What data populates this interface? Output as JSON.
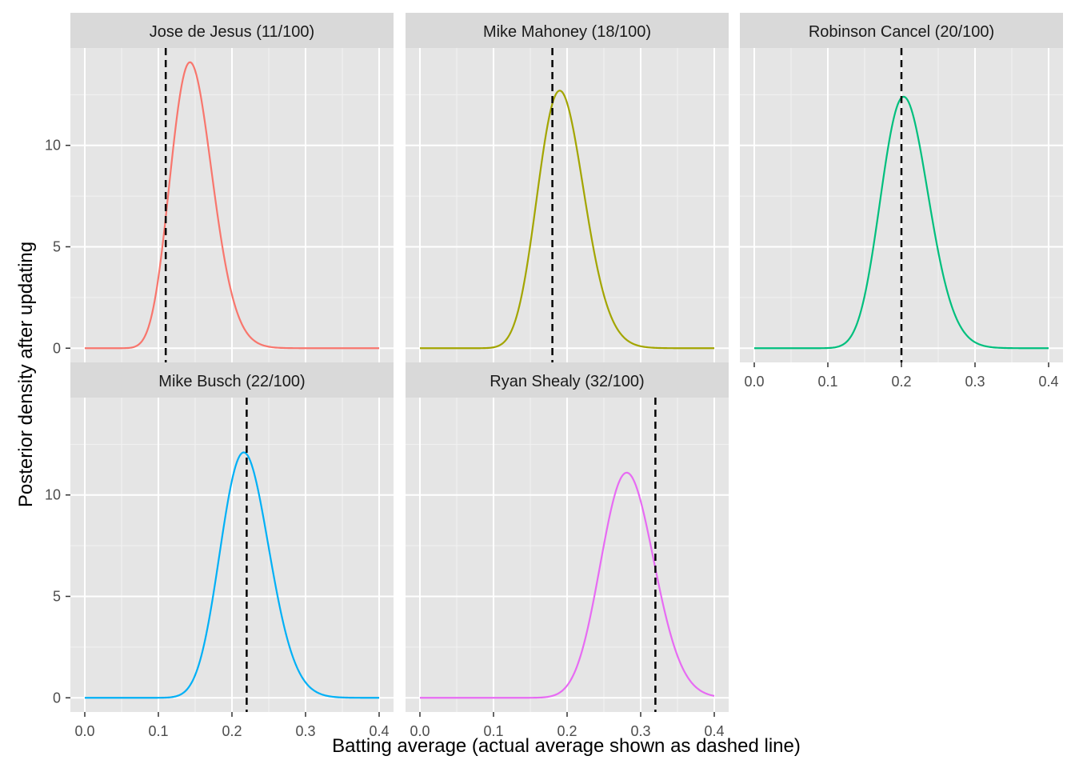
{
  "chart_data": {
    "type": "line",
    "xlabel": "Batting average (actual average shown as dashed line)",
    "ylabel": "Posterior density after updating",
    "xlim": [
      0,
      0.4
    ],
    "ylim": [
      0,
      14
    ],
    "xticks": [
      "0.0",
      "0.1",
      "0.2",
      "0.3",
      "0.4"
    ],
    "yticks": [
      "0",
      "5",
      "10"
    ],
    "grid": true,
    "legend": "none",
    "panels": [
      {
        "title": "Jose de Jesus (11/100)",
        "hits": 11,
        "at_bats": 100,
        "actual_average": 0.11,
        "posterior_mode": 0.143,
        "peak_density": 14.1,
        "color": "#F8766D"
      },
      {
        "title": "Mike Mahoney (18/100)",
        "hits": 18,
        "at_bats": 100,
        "actual_average": 0.18,
        "posterior_mode": 0.19,
        "peak_density": 12.7,
        "color": "#A3A500"
      },
      {
        "title": "Robinson Cancel (20/100)",
        "hits": 20,
        "at_bats": 100,
        "actual_average": 0.2,
        "posterior_mode": 0.203,
        "peak_density": 12.4,
        "color": "#00BF7D"
      },
      {
        "title": "Mike Busch (22/100)",
        "hits": 22,
        "at_bats": 100,
        "actual_average": 0.22,
        "posterior_mode": 0.216,
        "peak_density": 12.1,
        "color": "#00B0F6"
      },
      {
        "title": "Ryan Shealy (32/100)",
        "hits": 32,
        "at_bats": 100,
        "actual_average": 0.32,
        "posterior_mode": 0.281,
        "peak_density": 11.1,
        "color": "#E76BF3"
      }
    ]
  }
}
